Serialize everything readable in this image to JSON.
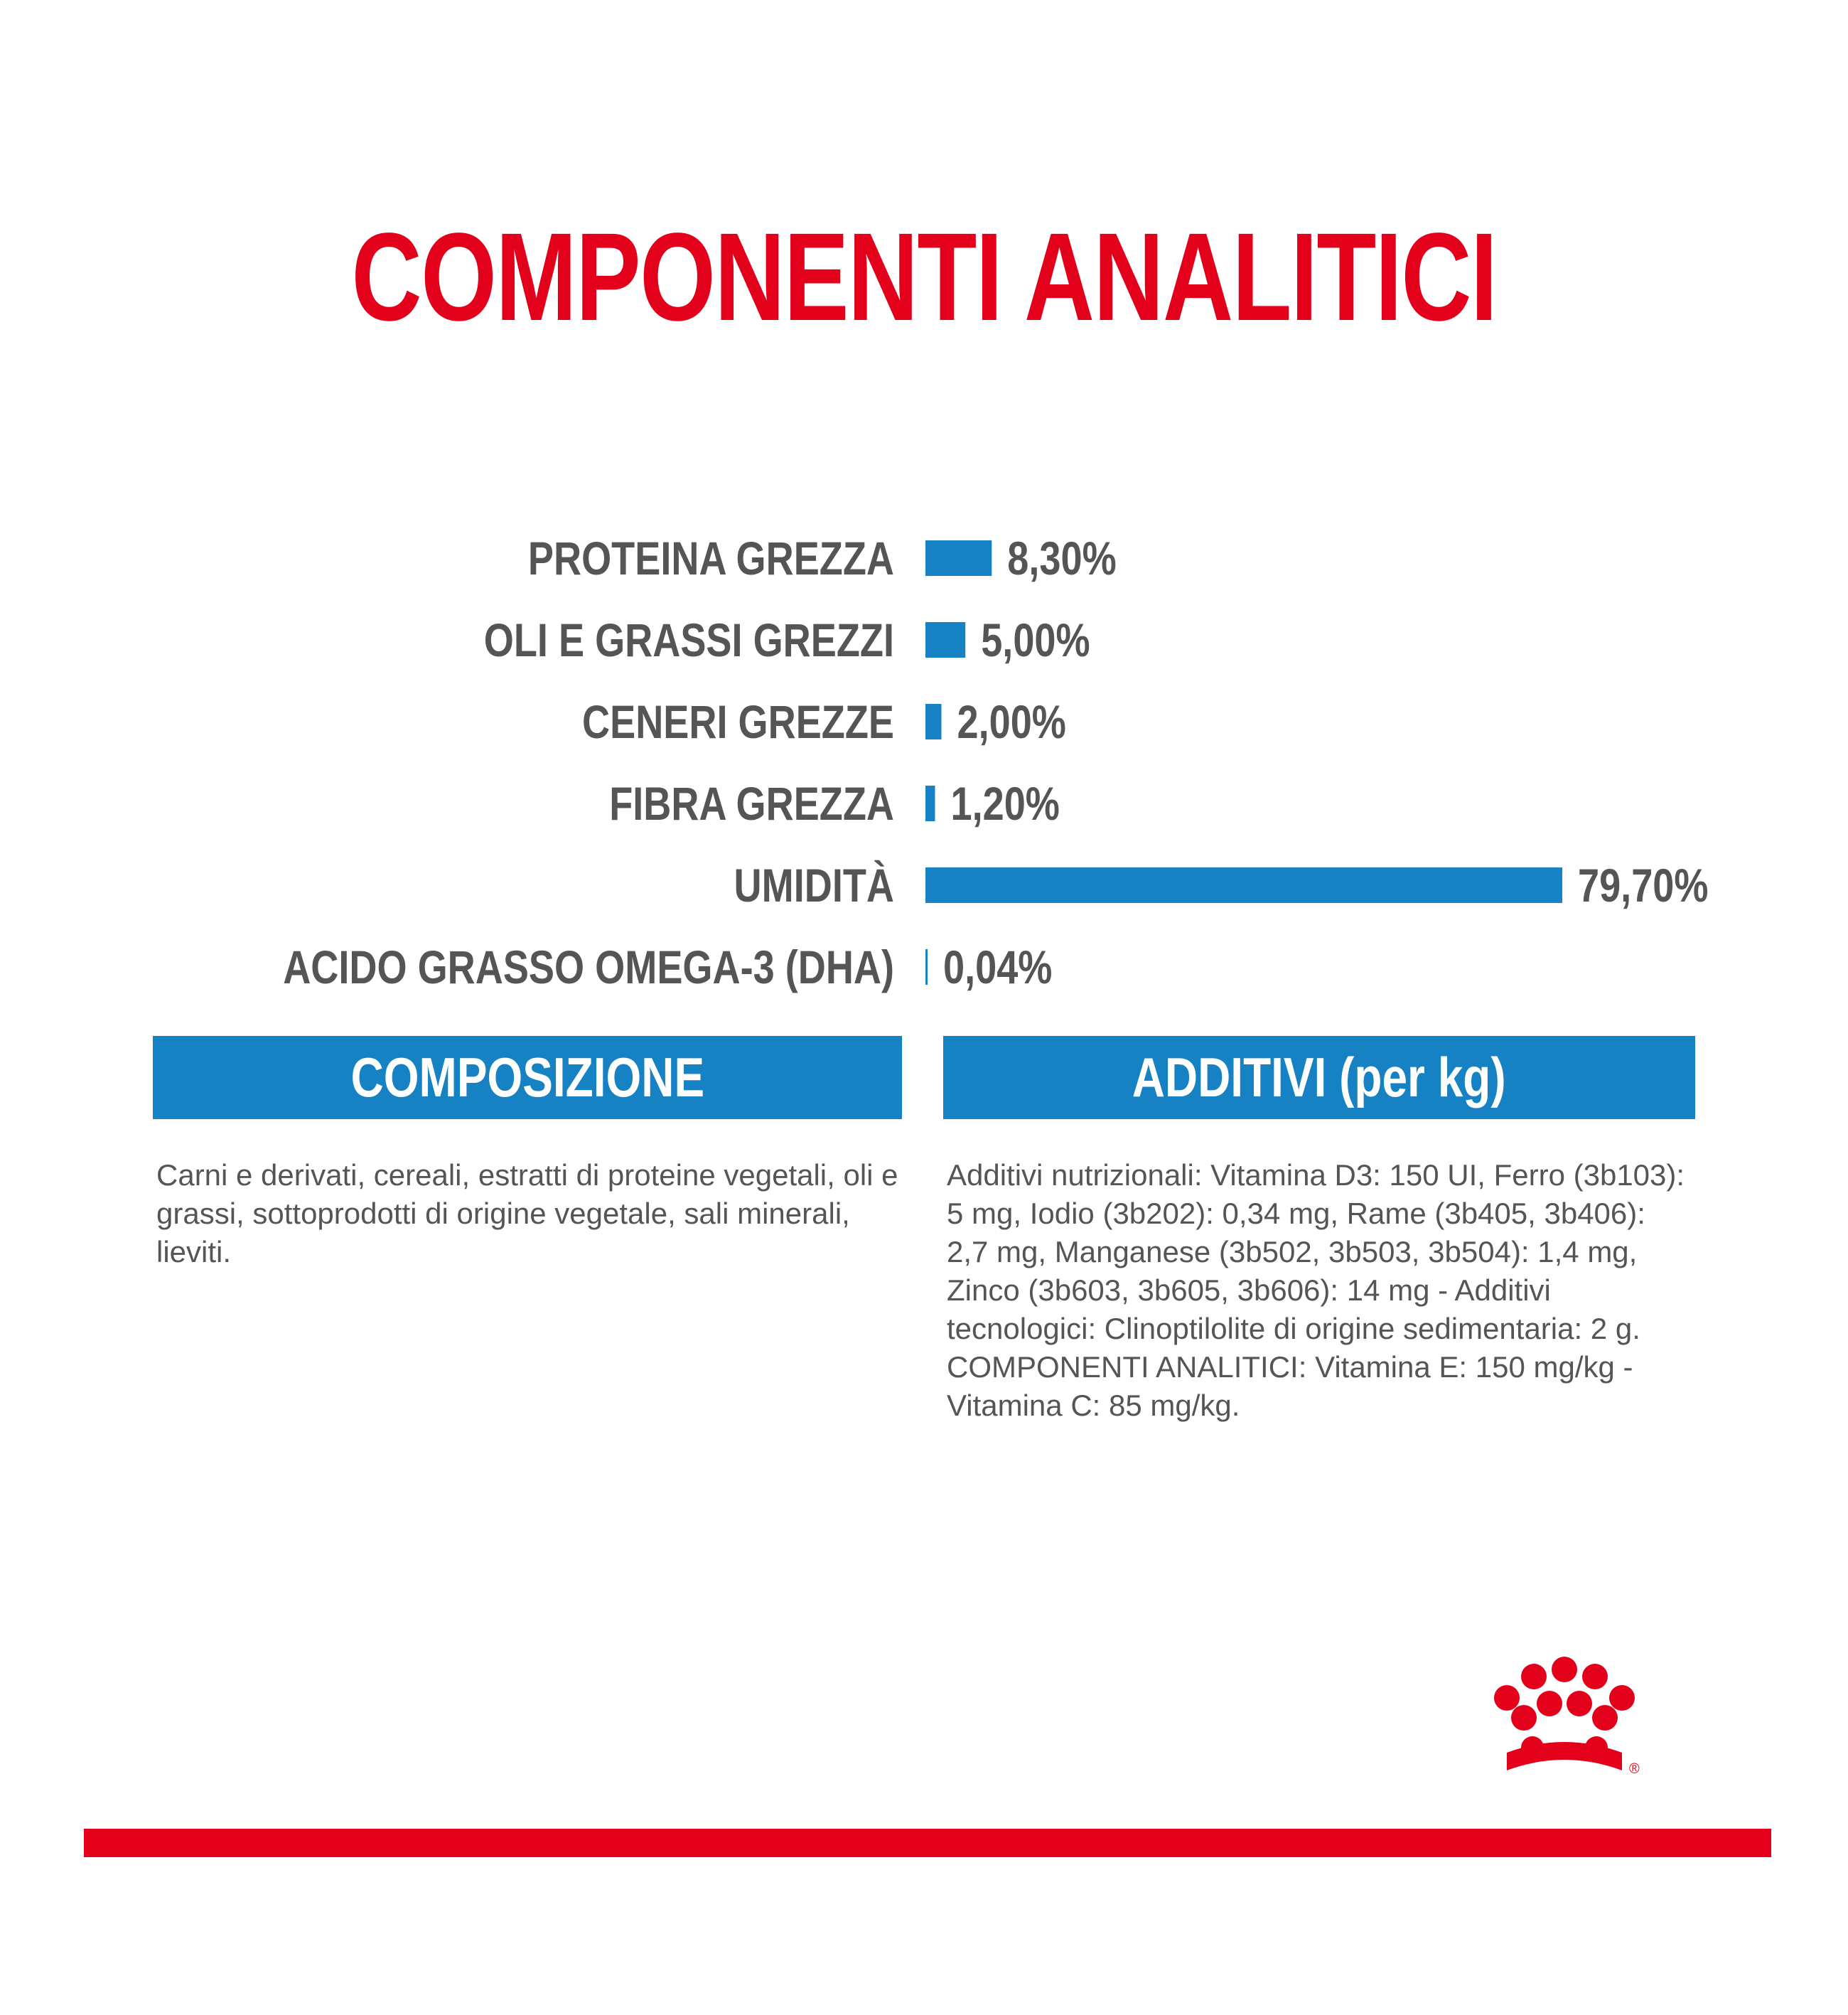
{
  "title": "COMPONENTI ANALITICI",
  "chart_data": {
    "type": "bar",
    "orientation": "horizontal",
    "categories": [
      "PROTEINA GREZZA",
      "OLI E GRASSI GREZZI",
      "CENERI GREZZE",
      "FIBRA GREZZA",
      "UMIDITÀ",
      "ACIDO GRASSO OMEGA-3 (DHA)"
    ],
    "values": [
      8.3,
      5.0,
      2.0,
      1.2,
      79.7,
      0.04
    ],
    "value_labels": [
      "8,30%",
      "5,00%",
      "2,00%",
      "1,20%",
      "79,70%",
      "0,04%"
    ],
    "unit": "%",
    "bar_color": "#1682c4",
    "label_color": "#555555",
    "grid": false
  },
  "composizione": {
    "header": "COMPOSIZIONE",
    "text": "Carni e derivati, cereali, estratti di proteine vegetali, oli e grassi, sottoprodotti di origine vegetale, sali minerali, lieviti."
  },
  "additivi": {
    "header": "ADDITIVI (per kg)",
    "text": "Additivi nutrizionali: Vitamina D3: 150 UI, Ferro (3b103): 5 mg, Iodio (3b202): 0,34 mg, Rame (3b405, 3b406): 2,7 mg, Manganese (3b502, 3b503, 3b504): 1,4 mg, Zinco (3b603, 3b605, 3b606): 14 mg - Additivi tecnologici: Clinoptilolite di origine sedimentaria: 2 g.",
    "text2": "COMPONENTI ANALITICI: Vitamina E: 150 mg/kg - Vitamina C: 85 mg/kg."
  },
  "colors": {
    "brand_red": "#e2001a",
    "brand_blue": "#1682c4",
    "text_grey": "#555555"
  },
  "logo": {
    "icon": "royal-canin-crown-icon",
    "mark": "®"
  }
}
